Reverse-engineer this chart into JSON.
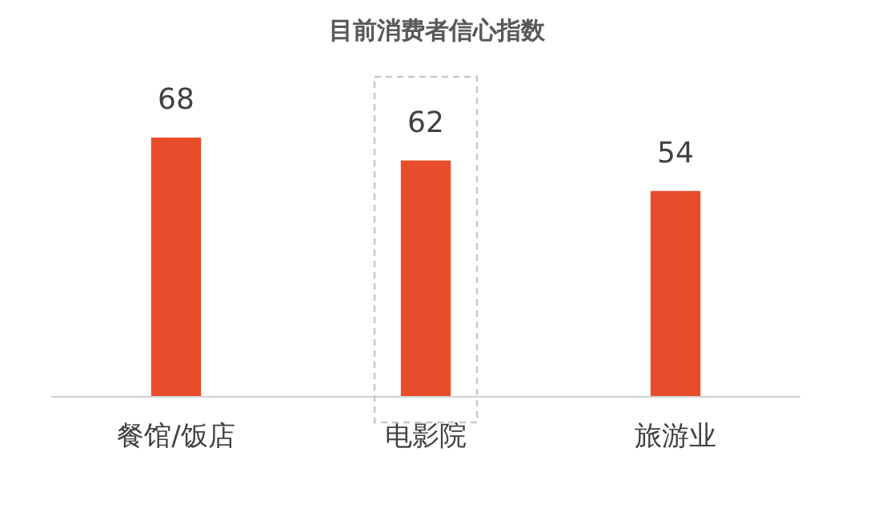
{
  "chart_data": {
    "type": "bar",
    "title": "目前消费者信心指数",
    "categories": [
      "餐馆/饭店",
      "电影院",
      "旅游业"
    ],
    "values": [
      68,
      62,
      54
    ],
    "color": "#e84c2b",
    "data_labels": true
  }
}
